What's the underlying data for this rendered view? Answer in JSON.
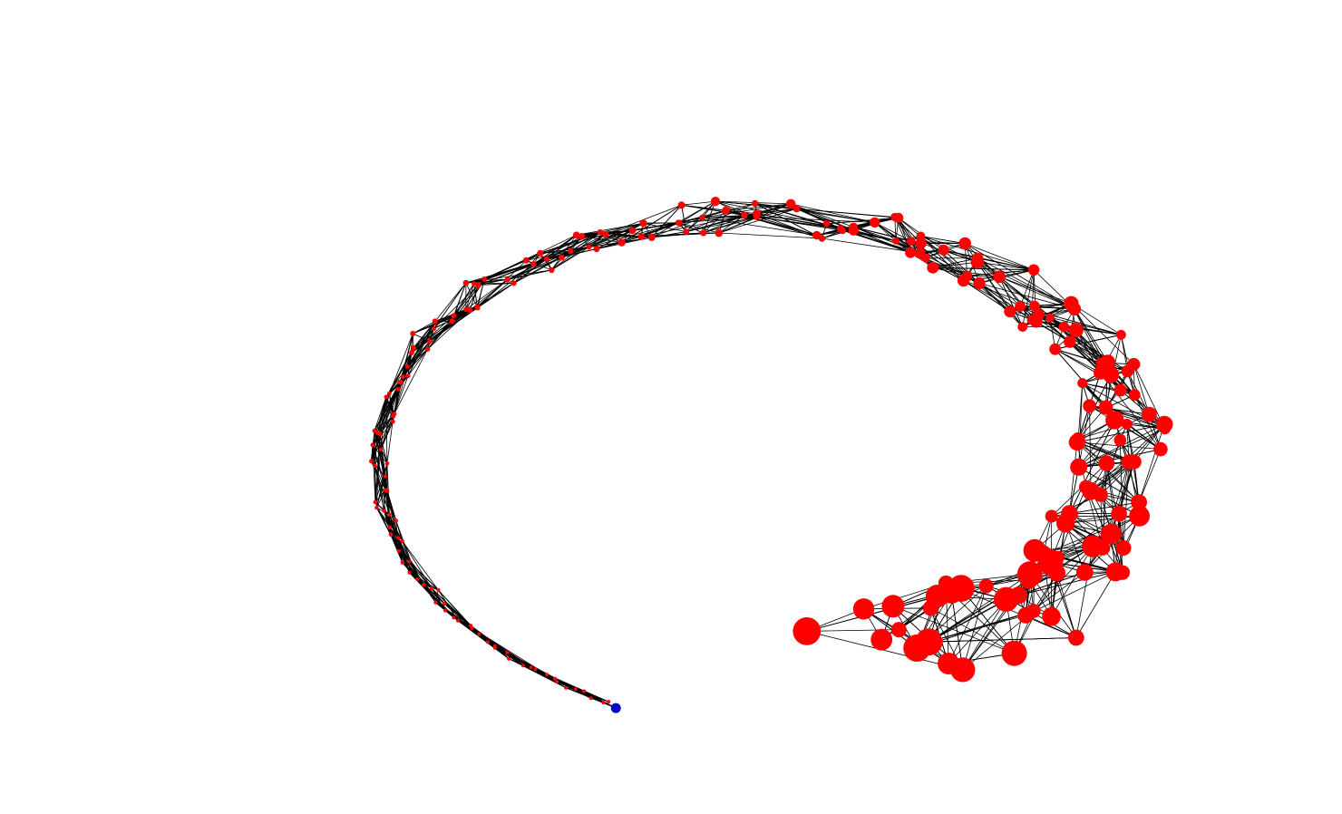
{
  "graph": {
    "type": "network",
    "layout": "spiral",
    "node_count": 230,
    "neighbors_per_node": 7,
    "colors": {
      "background": "#ffffff",
      "edge": "#000000",
      "node": "#ff0000",
      "highlight_node": "#0000cc"
    },
    "highlight_node": {
      "index": 0
    }
  }
}
